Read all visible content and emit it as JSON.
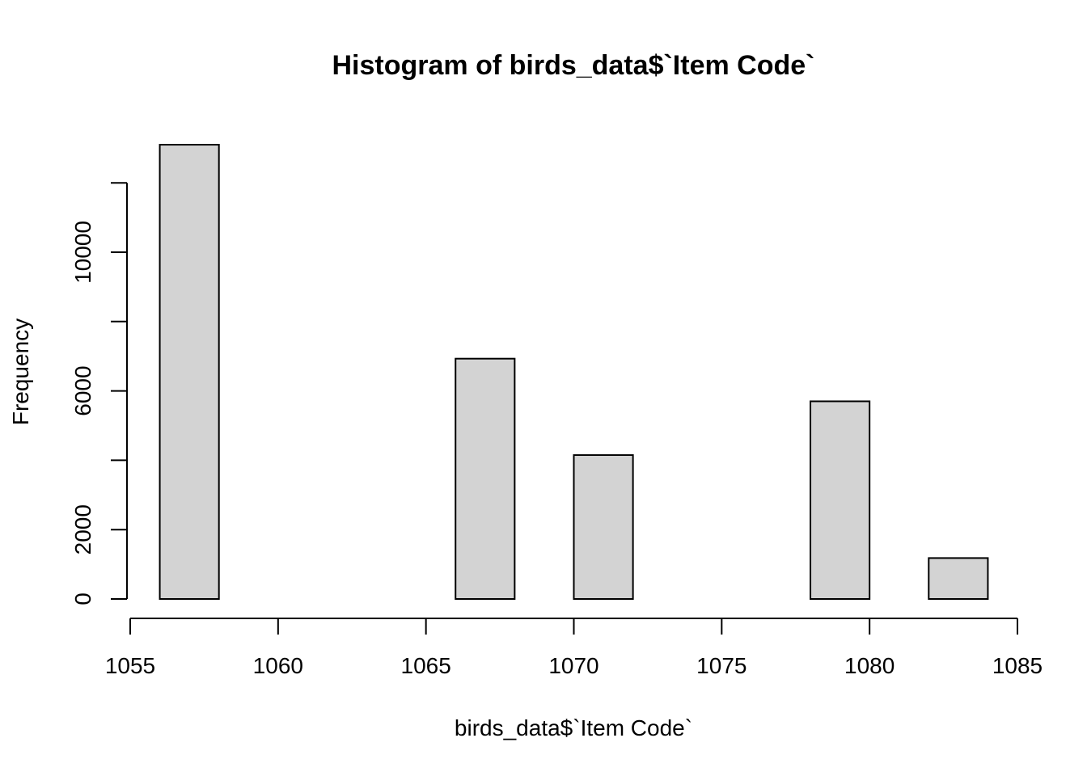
{
  "chart_data": {
    "type": "bar",
    "title": "Histogram of birds_data$`Item Code`",
    "xlabel": "birds_data$`Item Code`",
    "ylabel": "Frequency",
    "bins": [
      {
        "start": 1056,
        "end": 1058,
        "count": 13100
      },
      {
        "start": 1058,
        "end": 1060,
        "count": 0
      },
      {
        "start": 1060,
        "end": 1062,
        "count": 0
      },
      {
        "start": 1062,
        "end": 1064,
        "count": 0
      },
      {
        "start": 1064,
        "end": 1066,
        "count": 0
      },
      {
        "start": 1066,
        "end": 1068,
        "count": 6930
      },
      {
        "start": 1068,
        "end": 1070,
        "count": 0
      },
      {
        "start": 1070,
        "end": 1072,
        "count": 4150
      },
      {
        "start": 1072,
        "end": 1074,
        "count": 0
      },
      {
        "start": 1074,
        "end": 1076,
        "count": 0
      },
      {
        "start": 1076,
        "end": 1078,
        "count": 0
      },
      {
        "start": 1078,
        "end": 1080,
        "count": 5700
      },
      {
        "start": 1080,
        "end": 1082,
        "count": 0
      },
      {
        "start": 1082,
        "end": 1084,
        "count": 1180
      }
    ],
    "xlim": [
      1055,
      1085
    ],
    "ylim": [
      0,
      13100
    ],
    "x_ticks": [
      "1055",
      "1060",
      "1065",
      "1070",
      "1075",
      "1080",
      "1085"
    ],
    "x_tick_values": [
      1055,
      1060,
      1065,
      1070,
      1075,
      1080,
      1085
    ],
    "y_ticks": [
      "0",
      "2000",
      "6000",
      "10000"
    ],
    "y_tick_values": [
      0,
      2000,
      6000,
      10000
    ],
    "y_minor_tick_values": [
      4000,
      8000,
      12000
    ],
    "grid": false,
    "legend": "none",
    "colors": {
      "bar_fill": "#d3d3d3",
      "bar_stroke": "#000000"
    }
  }
}
